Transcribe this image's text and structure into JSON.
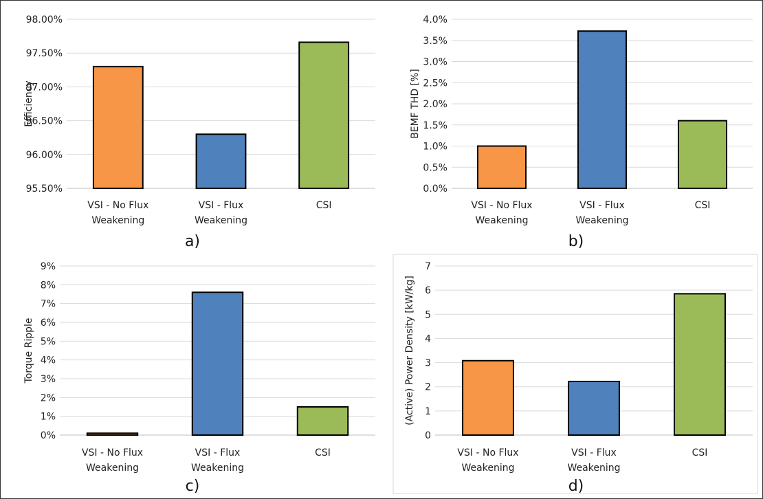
{
  "colors": {
    "orange": "#F79646",
    "blue": "#4F81BD",
    "green": "#9BBB59"
  },
  "chart_data": [
    {
      "type": "bar",
      "panel_label": "a)",
      "ylabel": "Efficiency",
      "categories": [
        [
          "VSI - No Flux",
          "Weakening"
        ],
        [
          "VSI - Flux",
          "Weakening"
        ],
        [
          "CSI"
        ]
      ],
      "values": [
        97.3,
        96.3,
        97.66
      ],
      "ylim": [
        95.5,
        98.0
      ],
      "yticks": [
        95.5,
        96.0,
        96.5,
        97.0,
        97.5,
        98.0
      ],
      "ytick_labels": [
        "95.50%",
        "96.00%",
        "96.50%",
        "97.00%",
        "97.50%",
        "98.00%"
      ],
      "bar_colors": [
        "orange",
        "blue",
        "green"
      ],
      "grid": true
    },
    {
      "type": "bar",
      "panel_label": "b)",
      "ylabel": "BEMF THD [%]",
      "categories": [
        [
          "VSI - No Flux",
          "Weakening"
        ],
        [
          "VSI - Flux",
          "Weakening"
        ],
        [
          "CSI"
        ]
      ],
      "values": [
        1.0,
        3.72,
        1.6
      ],
      "ylim": [
        0,
        4.0
      ],
      "yticks": [
        0,
        0.5,
        1.0,
        1.5,
        2.0,
        2.5,
        3.0,
        3.5,
        4.0
      ],
      "ytick_labels": [
        "0.0%",
        "0.5%",
        "1.0%",
        "1.5%",
        "2.0%",
        "2.5%",
        "3.0%",
        "3.5%",
        "4.0%"
      ],
      "bar_colors": [
        "orange",
        "blue",
        "green"
      ],
      "grid": true
    },
    {
      "type": "bar",
      "panel_label": "c)",
      "ylabel": "Torque Ripple",
      "categories": [
        [
          "VSI - No Flux",
          "Weakening"
        ],
        [
          "VSI - Flux",
          "Weakening"
        ],
        [
          "CSI"
        ]
      ],
      "values": [
        0.1,
        7.6,
        1.5
      ],
      "ylim": [
        0,
        9
      ],
      "yticks": [
        0,
        1,
        2,
        3,
        4,
        5,
        6,
        7,
        8,
        9
      ],
      "ytick_labels": [
        "0%",
        "1%",
        "2%",
        "3%",
        "4%",
        "5%",
        "6%",
        "7%",
        "8%",
        "9%"
      ],
      "bar_colors": [
        "orange",
        "blue",
        "green"
      ],
      "grid": true
    },
    {
      "type": "bar",
      "panel_label": "d)",
      "ylabel": "(Active) Power Density [kW/kg]",
      "categories": [
        [
          "VSI - No Flux",
          "Weakening"
        ],
        [
          "VSI - Flux",
          "Weakening"
        ],
        [
          "CSI"
        ]
      ],
      "values": [
        3.08,
        2.22,
        5.85
      ],
      "ylim": [
        0,
        7
      ],
      "yticks": [
        0,
        1,
        2,
        3,
        4,
        5,
        6,
        7
      ],
      "ytick_labels": [
        "0",
        "1",
        "2",
        "3",
        "4",
        "5",
        "6",
        "7"
      ],
      "bar_colors": [
        "orange",
        "blue",
        "green"
      ],
      "grid": true
    }
  ]
}
